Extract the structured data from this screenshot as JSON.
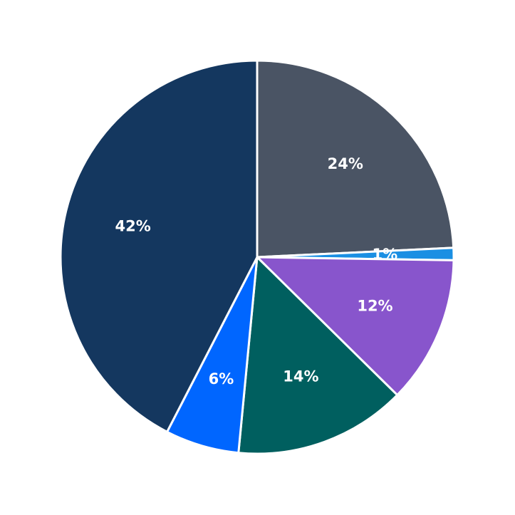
{
  "chart_data": {
    "type": "pie",
    "values": [
      24,
      1,
      12,
      14,
      6,
      42
    ],
    "value_labels": [
      "24%",
      "1%",
      "12%",
      "14%",
      "6%",
      "42%"
    ],
    "colors": [
      "#4a5464",
      "#1a8fe3",
      "#8855cc",
      "#005f5f",
      "#0066ff",
      "#14375f"
    ]
  }
}
